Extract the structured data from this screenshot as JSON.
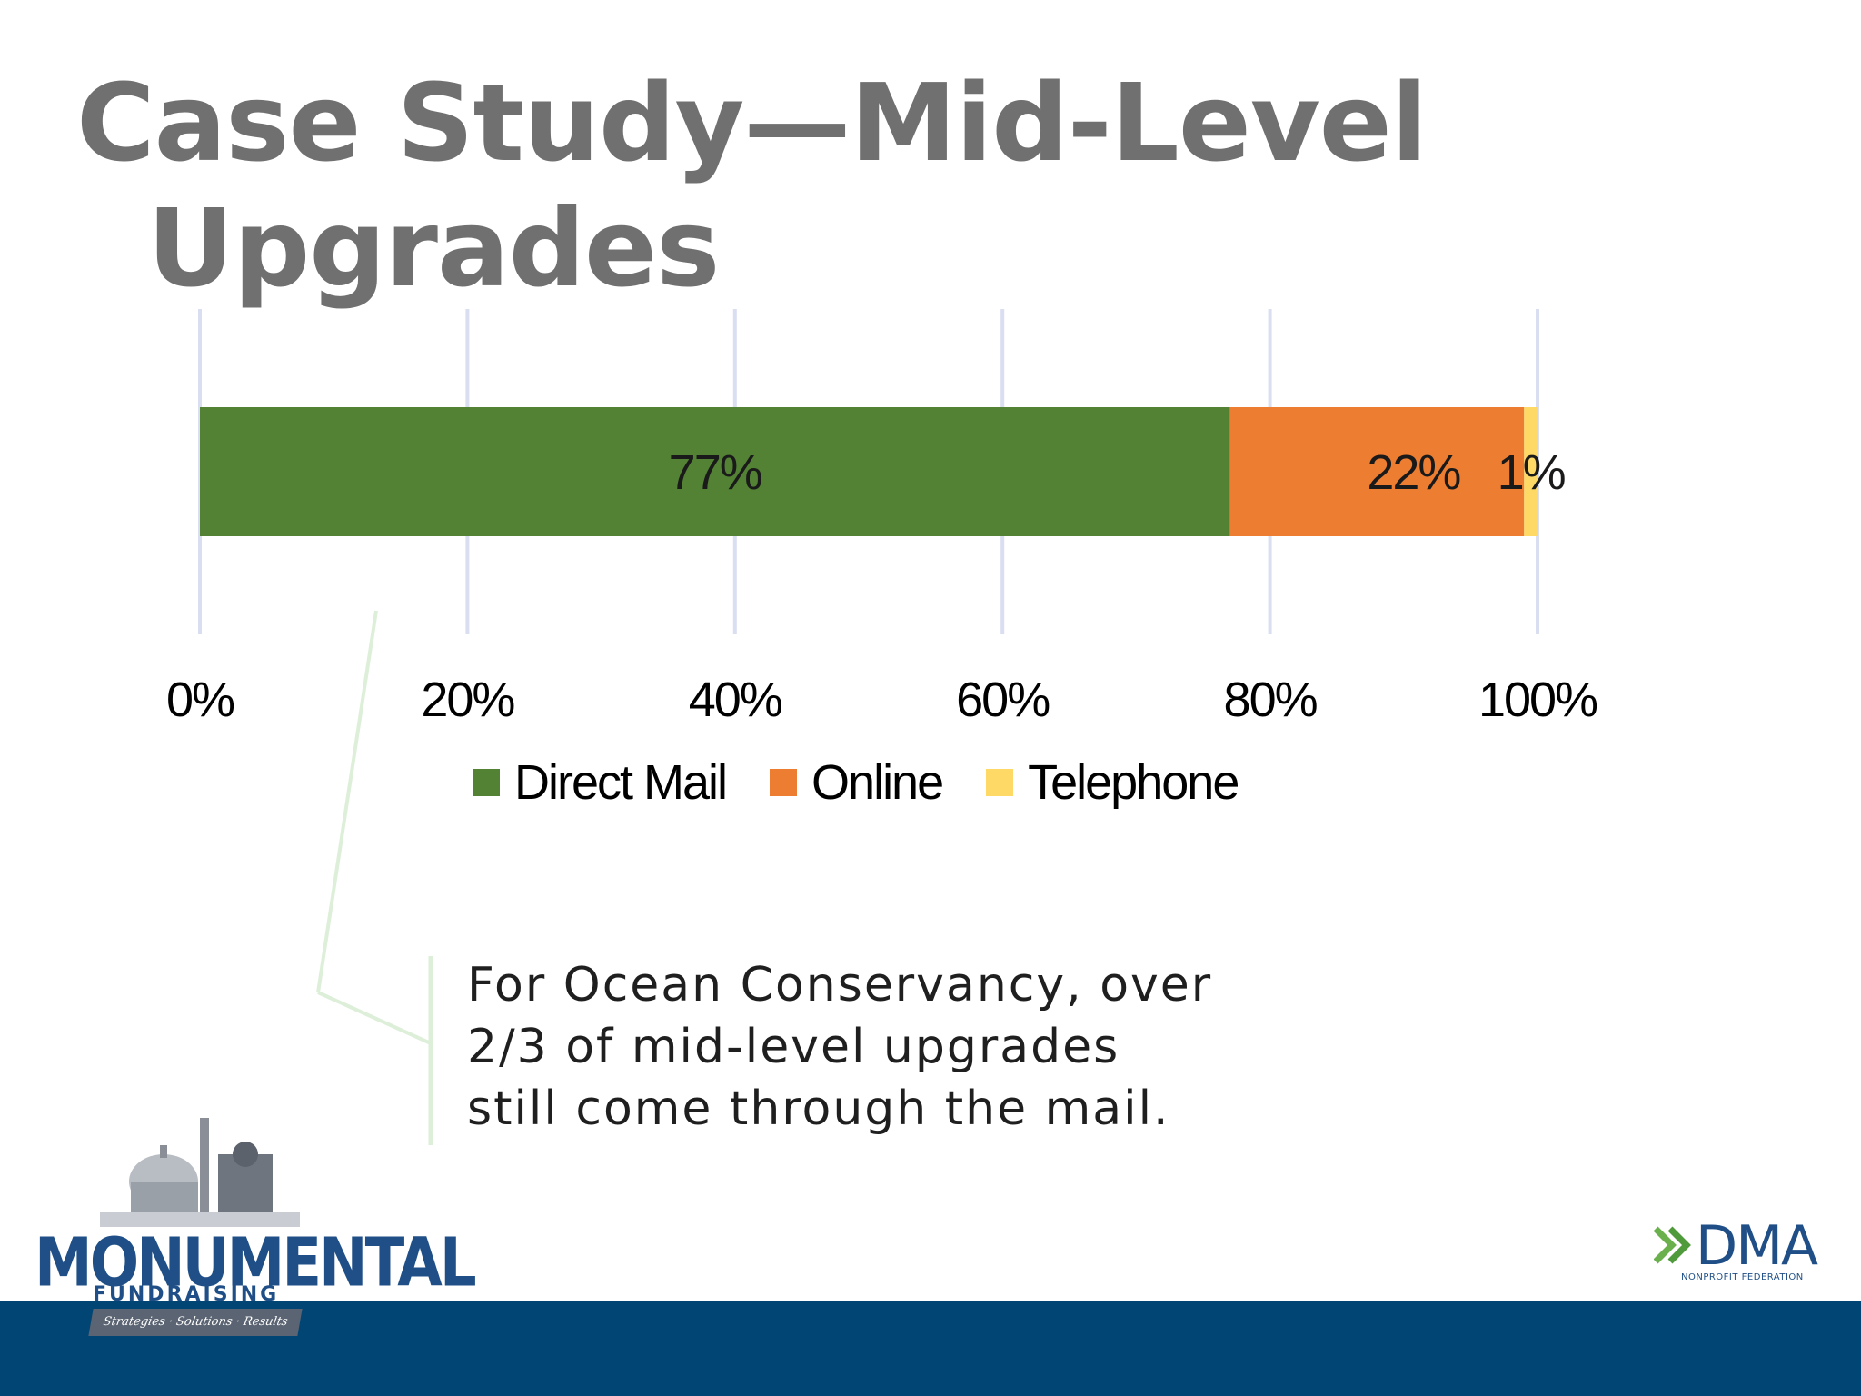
{
  "slide": {
    "title_line1": "Case Study—Mid-Level",
    "title_line2": "Upgrades",
    "callout_lines": [
      "For Ocean Conservancy, over",
      "2/3 of mid-level upgrades",
      "still come through the mail."
    ]
  },
  "chart_data": {
    "type": "bar",
    "orientation": "horizontal",
    "stacked": true,
    "categories": [
      ""
    ],
    "series": [
      {
        "name": "Direct Mail",
        "values": [
          77
        ],
        "label": "77%",
        "color": "#548235"
      },
      {
        "name": "Online",
        "values": [
          22
        ],
        "label": "22%",
        "color": "#ED7D31"
      },
      {
        "name": "Telephone",
        "values": [
          1
        ],
        "label": "1%",
        "color": "#FFD966"
      }
    ],
    "x_ticks": [
      "0%",
      "20%",
      "40%",
      "60%",
      "80%",
      "100%"
    ],
    "xlim": [
      0,
      100
    ],
    "grid": true,
    "legend_position": "bottom"
  },
  "logos": {
    "left_main": "MONUMENTAL",
    "left_sub": "FUNDRAISING",
    "left_ribbon": "Strategies · Solutions · Results",
    "right_main": "DMA",
    "right_sub": "NONPROFIT FEDERATION"
  },
  "colors": {
    "title": "#707070",
    "footer_band": "#004574",
    "gridline": "#D9DEF0",
    "callout_line": "#DDEFD9"
  }
}
